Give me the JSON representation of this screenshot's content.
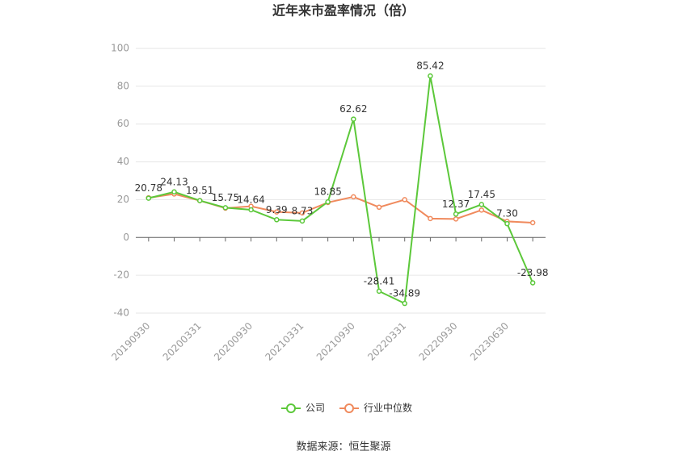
{
  "chart_data": {
    "type": "line",
    "title": "近年来市盈率情况（倍）",
    "categories": [
      "20190930",
      null,
      "20200331",
      null,
      "20200930",
      null,
      "20210331",
      null,
      "20210930",
      null,
      "20220331",
      null,
      "20220930",
      null,
      "20230630",
      null
    ],
    "series": [
      {
        "name": "公司",
        "color": "#5cc83a",
        "values": [
          20.78,
          24.13,
          19.51,
          15.75,
          14.64,
          9.39,
          8.73,
          18.85,
          62.62,
          -28.41,
          -34.89,
          85.42,
          12.37,
          17.45,
          7.3,
          -23.98
        ],
        "value_labels": [
          "20.78",
          "24.13",
          "19.51",
          "15.75",
          "14.64",
          "9.39",
          "8.73",
          "18.85",
          "62.62",
          "-28.41",
          "-34.89",
          "85.42",
          "12.37",
          "17.45",
          "7.30",
          "-23.98"
        ]
      },
      {
        "name": "行业中位数",
        "color": "#f08a5d",
        "values": [
          21,
          23,
          19.5,
          15.5,
          16.5,
          13.5,
          13,
          18.5,
          21.5,
          16,
          20,
          10,
          9.8,
          14.5,
          8.5,
          7.8
        ]
      }
    ],
    "ylim": [
      -40,
      100
    ],
    "yticks": [
      -40,
      -20,
      0,
      20,
      40,
      60,
      80,
      100
    ],
    "grid": true,
    "source": "数据来源：恒生聚源"
  }
}
